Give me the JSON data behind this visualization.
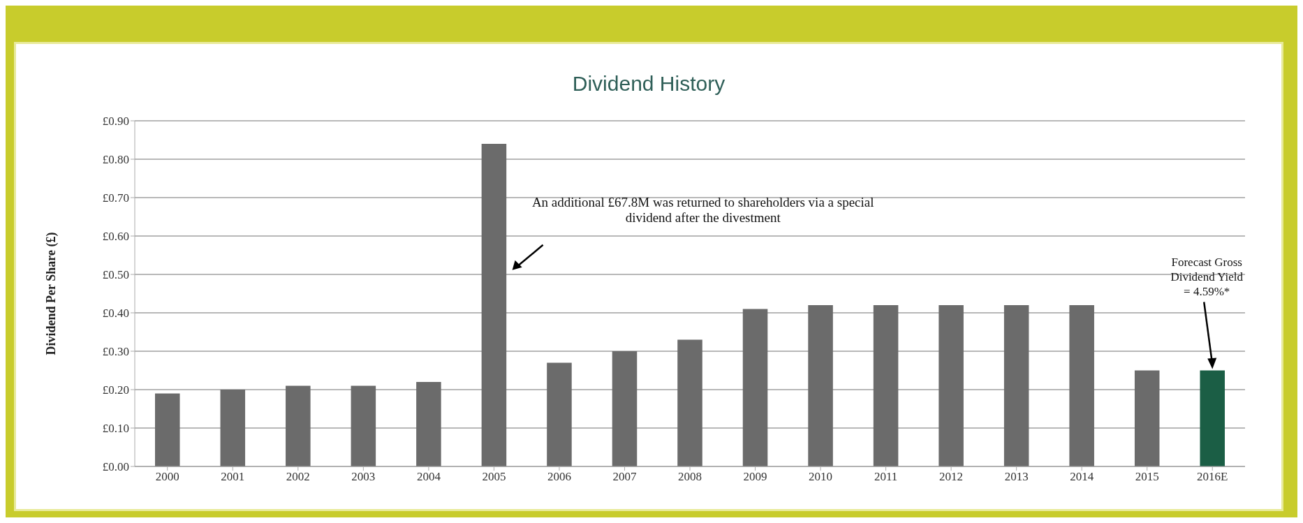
{
  "chart_data": {
    "type": "bar",
    "title": "Dividend History",
    "ylabel": "Dividend Per Share (£)",
    "categories": [
      "2000",
      "2001",
      "2002",
      "2003",
      "2004",
      "2005",
      "2006",
      "2007",
      "2008",
      "2009",
      "2010",
      "2011",
      "2012",
      "2013",
      "2014",
      "2015",
      "2016E"
    ],
    "values": [
      0.19,
      0.2,
      0.21,
      0.21,
      0.22,
      0.84,
      0.27,
      0.3,
      0.33,
      0.41,
      0.42,
      0.42,
      0.42,
      0.42,
      0.42,
      0.25,
      0.25
    ],
    "colors": [
      "#6b6b6b",
      "#6b6b6b",
      "#6b6b6b",
      "#6b6b6b",
      "#6b6b6b",
      "#6b6b6b",
      "#6b6b6b",
      "#6b6b6b",
      "#6b6b6b",
      "#6b6b6b",
      "#6b6b6b",
      "#6b6b6b",
      "#6b6b6b",
      "#6b6b6b",
      "#6b6b6b",
      "#6b6b6b",
      "#1b5e45"
    ],
    "ylim": [
      0,
      0.9
    ],
    "yticks": [
      {
        "value": 0,
        "label": "£0.00"
      },
      {
        "value": 0.1,
        "label": "£0.10"
      },
      {
        "value": 0.2,
        "label": "£0.20"
      },
      {
        "value": 0.3,
        "label": "£0.30"
      },
      {
        "value": 0.4,
        "label": "£0.40"
      },
      {
        "value": 0.5,
        "label": "£0.50"
      },
      {
        "value": 0.6,
        "label": "£0.60"
      },
      {
        "value": 0.7,
        "label": "£0.70"
      },
      {
        "value": 0.8,
        "label": "£0.80"
      },
      {
        "value": 0.9,
        "label": "£0.90"
      }
    ],
    "grid": "y",
    "legend": false,
    "annotations": [
      "An additional £67.8M was returned to shareholders via a special\ndividend after the divestment",
      "Forecast Gross\nDividend Yield\n= 4.59%*"
    ]
  }
}
